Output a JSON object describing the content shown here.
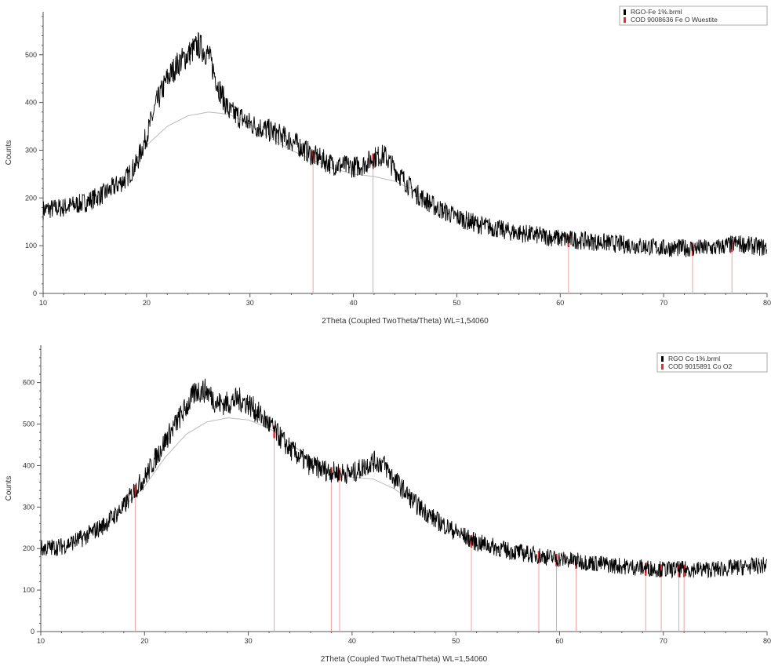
{
  "chart_data": [
    {
      "type": "line",
      "xlabel": "2Theta (Coupled TwoTheta/Theta) WL=1,54060",
      "ylabel": "Counts",
      "xlim": [
        10,
        80
      ],
      "ylim": [
        0,
        590
      ],
      "xticks": [
        10,
        20,
        30,
        40,
        50,
        60,
        70,
        80
      ],
      "yticks": [
        0,
        100,
        200,
        300,
        400,
        500
      ],
      "legend": "top-right",
      "series": [
        {
          "name": "RGO-Fe 1%.brml",
          "color": "#000000",
          "x": [
            10,
            12,
            14,
            16,
            18,
            19,
            20,
            21,
            22,
            23,
            24,
            25,
            26,
            27,
            28,
            29,
            30,
            32,
            34,
            36,
            38,
            40,
            41,
            42,
            43,
            44,
            46,
            48,
            50,
            52,
            55,
            60,
            65,
            70,
            75,
            77,
            80
          ],
          "y": [
            175,
            180,
            190,
            210,
            240,
            270,
            330,
            400,
            450,
            480,
            500,
            520,
            500,
            430,
            380,
            370,
            355,
            340,
            320,
            290,
            270,
            265,
            270,
            285,
            290,
            260,
            210,
            180,
            160,
            145,
            130,
            115,
            105,
            95,
            95,
            105,
            95
          ]
        },
        {
          "name": "COD 9008636 Fe O Wuestite",
          "color": "#e03030",
          "type": "stick",
          "x": [
            36.1,
            41.9,
            60.8,
            72.8,
            76.6
          ]
        }
      ],
      "background": {
        "color": "#bbbbbb",
        "x": [
          19,
          20,
          22,
          24,
          26,
          28,
          30,
          32,
          34,
          36,
          38,
          40,
          42,
          44,
          46
        ],
        "y": [
          280,
          310,
          350,
          372,
          380,
          375,
          355,
          325,
          300,
          280,
          262,
          250,
          245,
          235,
          215
        ]
      }
    },
    {
      "type": "line",
      "xlabel": "2Theta (Coupled TwoTheta/Theta) WL=1,54060",
      "ylabel": "Counts",
      "xlim": [
        10,
        80
      ],
      "ylim": [
        0,
        690
      ],
      "xticks": [
        10,
        20,
        30,
        40,
        50,
        60,
        70,
        80
      ],
      "yticks": [
        0,
        100,
        200,
        300,
        400,
        500,
        600
      ],
      "legend": "top-right",
      "series": [
        {
          "name": "RGO Co 1%.brml",
          "color": "#000000",
          "x": [
            10,
            12,
            14,
            16,
            18,
            19,
            20,
            22,
            24,
            25,
            26,
            27,
            28,
            29,
            30,
            32,
            34,
            36,
            38,
            40,
            41,
            42,
            43,
            44,
            46,
            48,
            50,
            52,
            55,
            60,
            65,
            70,
            75,
            80
          ],
          "y": [
            200,
            205,
            225,
            255,
            300,
            340,
            370,
            460,
            540,
            580,
            580,
            550,
            550,
            560,
            550,
            500,
            440,
            400,
            385,
            380,
            395,
            410,
            405,
            370,
            310,
            270,
            240,
            215,
            195,
            175,
            160,
            150,
            150,
            160
          ]
        },
        {
          "name": "COD 9015891 Co O2",
          "color": "#e03030",
          "type": "stick",
          "x": [
            19.1,
            32.5,
            38.0,
            38.8,
            51.5,
            58.0,
            59.7,
            61.6,
            68.3,
            69.8,
            71.5,
            72.0
          ]
        }
      ],
      "background": {
        "color": "#bbbbbb",
        "x": [
          18,
          20,
          22,
          24,
          26,
          28,
          30,
          32,
          34,
          36,
          38,
          40,
          42,
          44,
          46
        ],
        "y": [
          300,
          350,
          420,
          475,
          505,
          515,
          510,
          490,
          455,
          415,
          385,
          372,
          368,
          345,
          310
        ]
      }
    }
  ]
}
